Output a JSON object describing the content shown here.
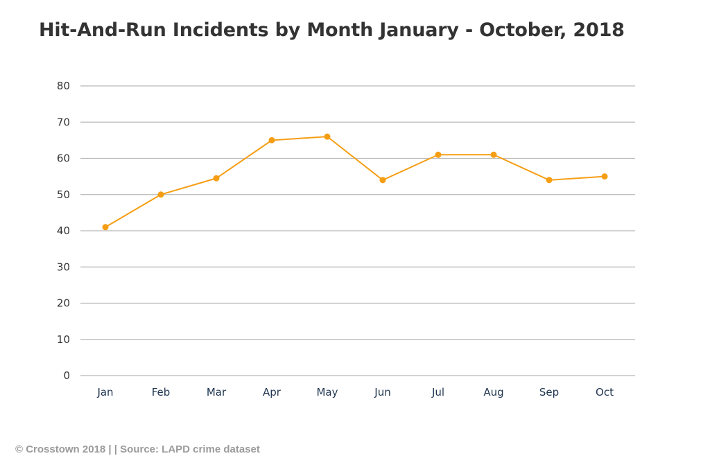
{
  "chart_data": {
    "type": "line",
    "title": "Hit-And-Run Incidents by Month January - October, 2018",
    "xlabel": "",
    "ylabel": "",
    "categories": [
      "Jan",
      "Feb",
      "Mar",
      "Apr",
      "May",
      "Jun",
      "Jul",
      "Aug",
      "Sep",
      "Oct"
    ],
    "series": [
      {
        "values": [
          41,
          50,
          54.5,
          65,
          66,
          54,
          61,
          61,
          54,
          55
        ]
      }
    ],
    "ylim": [
      0,
      80
    ],
    "yticks": [
      0,
      10,
      20,
      30,
      40,
      50,
      60,
      70,
      80
    ],
    "grid": "horizontal",
    "legend": "none",
    "colors": {
      "line": "#f59e14",
      "grid": "#b8b8b8",
      "title": "#333333",
      "tick_x": "#1f3550",
      "tick_y": "#333333",
      "footer": "#9a9a9a"
    }
  },
  "footer": "© Crosstown 2018 | | Source: LAPD crime dataset"
}
